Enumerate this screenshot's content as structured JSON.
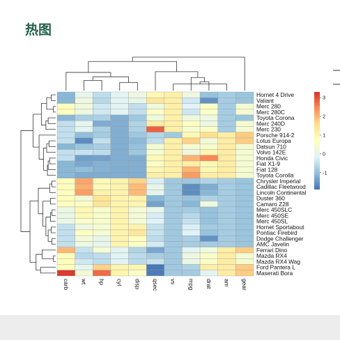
{
  "page": {
    "title": "热图"
  },
  "chart_data": {
    "type": "heatmap",
    "title": "",
    "columns": [
      "carb",
      "wt",
      "hp",
      "cyl",
      "disp",
      "qsec",
      "vs",
      "mpg",
      "drat",
      "am",
      "gear"
    ],
    "rows": [
      "Hornet 4 Drive",
      "Valiant",
      "Merc 280",
      "Merc 280C",
      "Toyota Corona",
      "Merc 240D",
      "Merc 230",
      "Porsche 914-2",
      "Lotus Europa",
      "Datsun 710",
      "Volvo 142E",
      "Honda Civic",
      "Fiat X1-9",
      "Fiat 128",
      "Toyota Corolla",
      "Chrysler Imperial",
      "Cadillac Fleetwood",
      "Lincoln Continental",
      "Duster 360",
      "Camaro Z28",
      "Merc 450SLC",
      "Merc 450SE",
      "Merc 450SL",
      "Hornet Sportabout",
      "Pontiac Firebird",
      "Dodge Challenger",
      "AMC Javelin",
      "Ferrari Dino",
      "Mazda RX4",
      "Mazda RX4 Wag",
      "Ford Pantera L",
      "Maserati Bora"
    ],
    "values": [
      [
        -1.12,
        -0.0,
        -0.54,
        -0.11,
        0.22,
        0.89,
        1.12,
        0.22,
        -0.97,
        -0.81,
        -0.93
      ],
      [
        -1.12,
        0.23,
        -0.61,
        -0.11,
        0.05,
        1.33,
        1.12,
        -0.33,
        -1.56,
        -0.81,
        -0.93
      ],
      [
        0.74,
        0.23,
        -0.35,
        -0.11,
        -0.51,
        0.25,
        1.12,
        -0.15,
        0.6,
        -0.81,
        0.42
      ],
      [
        0.74,
        0.23,
        -0.35,
        -0.11,
        -0.51,
        0.59,
        1.12,
        -0.38,
        0.6,
        -0.81,
        0.42
      ],
      [
        -1.12,
        -0.77,
        -0.74,
        -1.22,
        -0.89,
        0.24,
        1.12,
        0.23,
        0.19,
        -0.81,
        -0.93
      ],
      [
        -0.5,
        -0.0,
        -1.24,
        -1.22,
        -0.68,
        1.2,
        1.12,
        0.72,
        0.17,
        -0.81,
        0.42
      ],
      [
        -0.5,
        -0.07,
        -0.75,
        -1.22,
        -0.73,
        2.83,
        1.12,
        0.45,
        0.6,
        -0.81,
        0.42
      ],
      [
        -0.5,
        -1.04,
        -0.82,
        -1.22,
        -0.89,
        -0.64,
        -0.87,
        0.9,
        1.56,
        1.19,
        1.78
      ],
      [
        -0.5,
        -1.64,
        -0.49,
        -1.22,
        -1.09,
        -0.53,
        1.12,
        1.71,
        0.32,
        1.19,
        1.78
      ],
      [
        -1.12,
        -0.92,
        -0.78,
        -1.22,
        -0.99,
        0.43,
        1.12,
        0.45,
        0.47,
        1.19,
        0.42
      ],
      [
        -0.5,
        -0.45,
        -0.56,
        -1.22,
        -0.89,
        0.42,
        1.12,
        0.22,
        0.96,
        1.19,
        0.42
      ],
      [
        -0.5,
        -1.41,
        -1.38,
        -1.22,
        -1.23,
        0.88,
        1.12,
        2.04,
        2.49,
        1.19,
        0.42
      ],
      [
        -1.12,
        -1.31,
        -1.19,
        -1.22,
        -1.22,
        0.59,
        1.12,
        1.2,
        0.9,
        1.19,
        0.42
      ],
      [
        -1.12,
        -1.04,
        -1.19,
        -1.22,
        -1.21,
        0.91,
        1.12,
        2.04,
        0.9,
        1.19,
        0.42
      ],
      [
        -1.12,
        -1.26,
        -1.25,
        -1.22,
        -1.23,
        1.15,
        1.12,
        2.29,
        1.17,
        1.19,
        0.42
      ],
      [
        0.74,
        2.17,
        0.85,
        1.01,
        1.69,
        -0.24,
        -0.87,
        -0.89,
        -0.69,
        -0.81,
        -0.93
      ],
      [
        0.74,
        2.08,
        0.78,
        1.01,
        1.95,
        0.07,
        -0.87,
        -1.61,
        -1.25,
        -0.81,
        -0.93
      ],
      [
        0.74,
        2.26,
        1.06,
        1.01,
        1.96,
        -0.02,
        -0.87,
        -1.61,
        -1.12,
        -0.81,
        -0.93
      ],
      [
        0.74,
        0.36,
        1.43,
        1.01,
        1.04,
        -1.12,
        -0.87,
        -0.96,
        -0.72,
        -0.81,
        -0.93
      ],
      [
        0.74,
        0.64,
        1.43,
        1.01,
        0.97,
        -1.37,
        -0.87,
        -1.13,
        0.24,
        -0.81,
        -0.93
      ],
      [
        0.12,
        0.93,
        0.49,
        1.01,
        0.37,
        0.08,
        -0.87,
        -0.81,
        -0.98,
        -0.81,
        -0.93
      ],
      [
        0.12,
        0.87,
        0.49,
        1.01,
        0.37,
        -0.25,
        -0.87,
        -0.61,
        -0.98,
        -0.81,
        -0.93
      ],
      [
        0.12,
        0.52,
        0.49,
        1.01,
        0.37,
        -0.14,
        -0.87,
        -0.46,
        -0.98,
        -0.81,
        -0.93
      ],
      [
        -0.5,
        0.23,
        0.41,
        1.01,
        1.04,
        -0.46,
        -0.87,
        -0.23,
        -0.84,
        -0.81,
        -0.93
      ],
      [
        -0.5,
        0.64,
        0.41,
        1.01,
        1.37,
        -0.45,
        -0.87,
        -0.15,
        -0.97,
        -0.81,
        -0.93
      ],
      [
        -0.5,
        0.31,
        0.05,
        1.01,
        0.69,
        -0.55,
        -0.87,
        -0.76,
        -1.56,
        -0.81,
        -0.93
      ],
      [
        -0.5,
        0.22,
        0.05,
        1.01,
        0.6,
        -0.31,
        -0.87,
        -0.81,
        -0.84,
        -0.81,
        -0.93
      ],
      [
        1.98,
        -0.45,
        0.41,
        -0.11,
        -0.69,
        -1.31,
        -0.87,
        -0.06,
        0.24,
        1.19,
        1.78
      ],
      [
        0.74,
        -0.61,
        -0.54,
        -0.11,
        -0.57,
        -0.78,
        -0.87,
        0.15,
        0.57,
        1.19,
        0.42
      ],
      [
        0.74,
        -0.35,
        -0.54,
        -0.11,
        -0.57,
        -0.46,
        -0.87,
        0.15,
        0.57,
        1.19,
        0.42
      ],
      [
        0.74,
        -0.03,
        1.71,
        1.01,
        0.97,
        -1.87,
        -0.87,
        -0.71,
        1.17,
        1.19,
        1.78
      ],
      [
        3.21,
        0.36,
        2.75,
        1.01,
        0.57,
        -1.82,
        -0.87,
        -0.84,
        -0.1,
        1.19,
        1.78
      ]
    ],
    "colorbar": {
      "range": [
        -1.9,
        3.3
      ],
      "ticks": [
        -1,
        0,
        1,
        2,
        3
      ],
      "colors": [
        "#4575b4",
        "#91bfdb",
        "#e0f3f8",
        "#ffffbf",
        "#fee090",
        "#fc8d59",
        "#d73027"
      ]
    },
    "dendrogram": {
      "col_merges": [
        [
          6,
          9,
          0.9
        ],
        [
          8,
          11,
          1.2
        ],
        [
          7,
          12,
          1.8
        ],
        [
          1,
          2,
          1.4
        ],
        [
          3,
          4,
          1.1
        ],
        [
          14,
          15,
          1.9
        ],
        [
          0,
          16,
          2.5
        ],
        [
          5,
          13,
          2.6
        ],
        [
          18,
          17,
          4.0
        ],
        [
          10,
          19,
          4.6
        ]
      ],
      "row_merges": [
        [
          0,
          1,
          0.6
        ],
        [
          2,
          3,
          0.3
        ],
        [
          32,
          33,
          1.2
        ],
        [
          4,
          5,
          1.0
        ],
        [
          35,
          6,
          1.3
        ],
        [
          34,
          36,
          1.9
        ],
        [
          8,
          9,
          0.9
        ],
        [
          38,
          10,
          1.2
        ],
        [
          11,
          12,
          0.8
        ],
        [
          40,
          13,
          1.0
        ],
        [
          41,
          14,
          1.1
        ],
        [
          39,
          42,
          1.6
        ],
        [
          7,
          43,
          2.2
        ],
        [
          37,
          44,
          3.0
        ],
        [
          15,
          16,
          0.5
        ],
        [
          46,
          17,
          0.8
        ],
        [
          18,
          19,
          0.7
        ],
        [
          20,
          21,
          0.5
        ],
        [
          49,
          22,
          0.7
        ],
        [
          23,
          24,
          0.6
        ],
        [
          25,
          26,
          0.5
        ],
        [
          51,
          52,
          1.0
        ],
        [
          50,
          53,
          1.3
        ],
        [
          48,
          54,
          1.7
        ],
        [
          47,
          55,
          2.3
        ],
        [
          28,
          29,
          0.3
        ],
        [
          27,
          57,
          1.8
        ],
        [
          30,
          31,
          2.0
        ],
        [
          58,
          59,
          2.6
        ],
        [
          56,
          60,
          3.4
        ],
        [
          45,
          61,
          4.6
        ]
      ]
    }
  }
}
